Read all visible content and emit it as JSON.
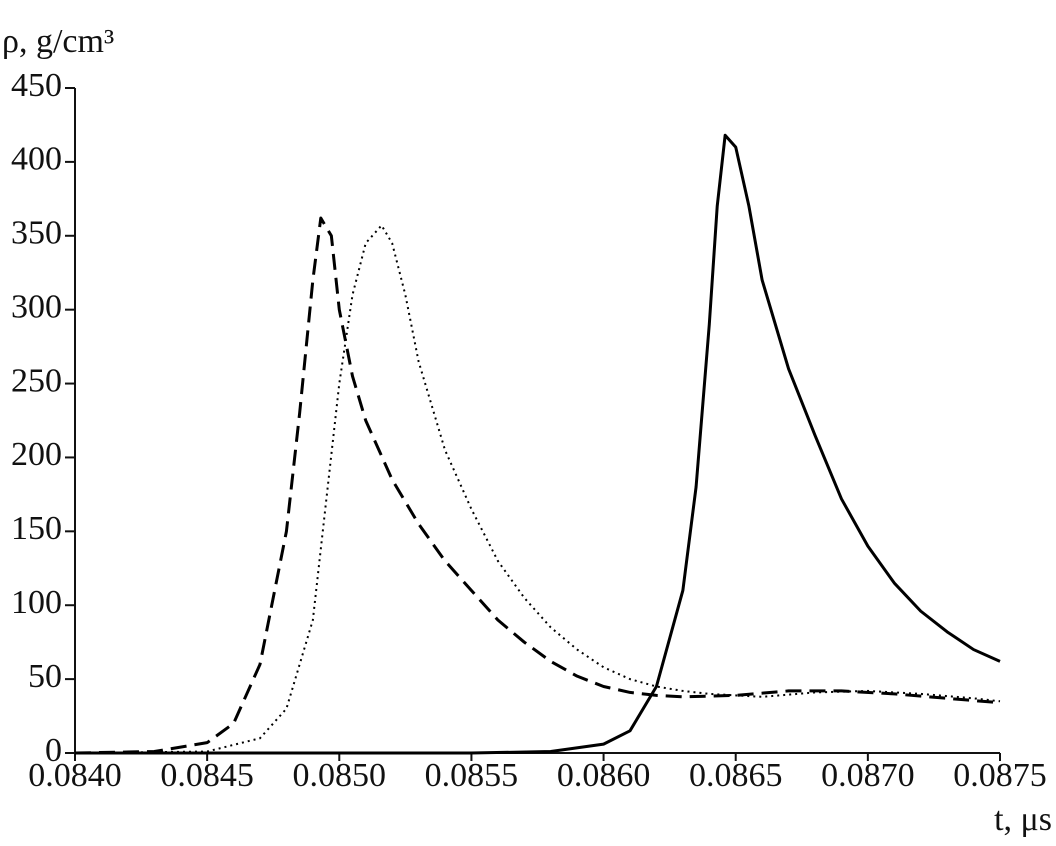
{
  "chart_data": {
    "type": "line",
    "ylabel": "ρ, g/cm³",
    "xlabel": "t, μs",
    "xlim": [
      0.084,
      0.0875
    ],
    "xticks": [
      {
        "value": 0.084,
        "label": "0.0840"
      },
      {
        "value": 0.0845,
        "label": "0.0845"
      },
      {
        "value": 0.085,
        "label": "0.0850"
      },
      {
        "value": 0.0855,
        "label": "0.0855"
      },
      {
        "value": 0.086,
        "label": "0.0860"
      },
      {
        "value": 0.0865,
        "label": "0.0865"
      },
      {
        "value": 0.087,
        "label": "0.0870"
      },
      {
        "value": 0.0875,
        "label": "0.0875"
      }
    ],
    "ylim": [
      0,
      450
    ],
    "yticks": [
      0,
      50,
      100,
      150,
      200,
      250,
      300,
      350,
      400,
      450
    ],
    "grid": false,
    "series": [
      {
        "color": "#000000",
        "style": "solid",
        "x": [
          0.084,
          0.0855,
          0.0858,
          0.086,
          0.0861,
          0.0862,
          0.0863,
          0.08635,
          0.0864,
          0.08643,
          0.08646,
          0.0865,
          0.08655,
          0.0866,
          0.0867,
          0.0868,
          0.0869,
          0.087,
          0.0871,
          0.0872,
          0.0873,
          0.0874,
          0.0875
        ],
        "values": [
          0,
          0,
          1,
          6,
          15,
          45,
          110,
          180,
          290,
          370,
          418,
          410,
          370,
          320,
          260,
          215,
          172,
          140,
          115,
          96,
          82,
          70,
          62
        ]
      },
      {
        "color": "#000000",
        "style": "dashed",
        "x": [
          0.084,
          0.0843,
          0.0845,
          0.0846,
          0.0847,
          0.0848,
          0.08485,
          0.0849,
          0.08493,
          0.08497,
          0.085,
          0.08505,
          0.0851,
          0.0852,
          0.0853,
          0.0854,
          0.0855,
          0.0856,
          0.0857,
          0.0858,
          0.0859,
          0.086,
          0.0861,
          0.0862,
          0.0863,
          0.0865,
          0.0867,
          0.0869,
          0.0871,
          0.0873,
          0.0875
        ],
        "values": [
          0,
          1,
          7,
          20,
          60,
          150,
          230,
          320,
          362,
          350,
          300,
          255,
          225,
          185,
          155,
          130,
          110,
          90,
          75,
          62,
          52,
          45,
          41,
          39,
          38,
          39,
          42,
          42,
          40,
          37,
          34
        ]
      },
      {
        "color": "#000000",
        "style": "dotted",
        "x": [
          0.084,
          0.0845,
          0.0847,
          0.0848,
          0.0849,
          0.08495,
          0.085,
          0.08505,
          0.0851,
          0.08516,
          0.0852,
          0.08525,
          0.0853,
          0.0854,
          0.0855,
          0.0856,
          0.0857,
          0.0858,
          0.0859,
          0.086,
          0.0861,
          0.0862,
          0.0863,
          0.0864,
          0.0866,
          0.0868,
          0.087,
          0.0872,
          0.0874,
          0.0875
        ],
        "values": [
          0,
          1,
          10,
          30,
          90,
          170,
          250,
          310,
          345,
          357,
          345,
          310,
          265,
          205,
          165,
          130,
          105,
          85,
          70,
          58,
          50,
          45,
          42,
          40,
          38,
          41,
          42,
          40,
          37,
          35
        ]
      }
    ]
  }
}
